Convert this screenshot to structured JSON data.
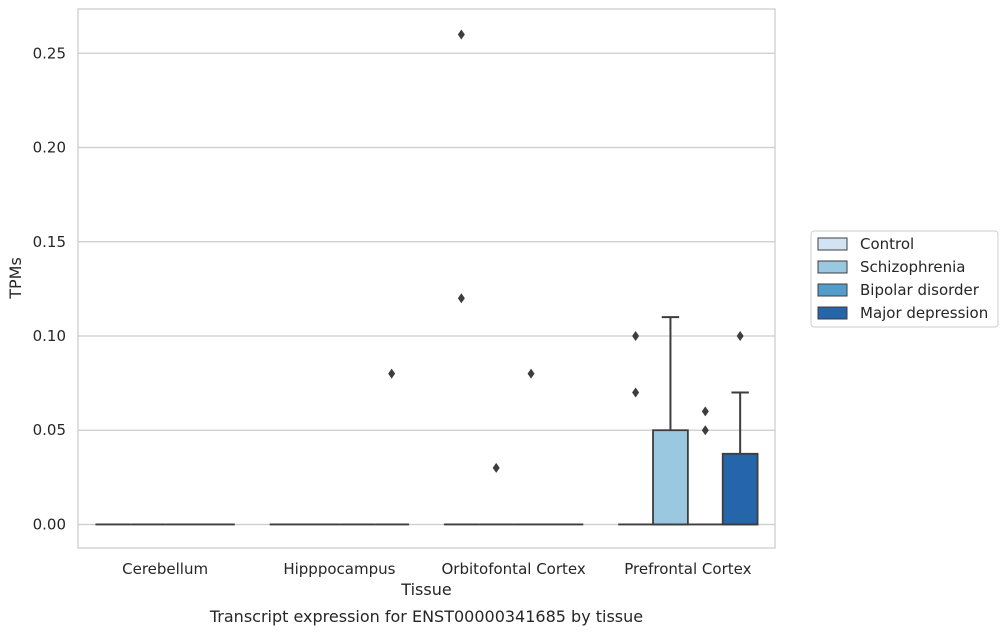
{
  "chart_data": {
    "type": "box",
    "title": "",
    "caption": "Transcript expression for ENST00000341685 by tissue",
    "xlabel": "Tissue",
    "ylabel": "TPMs",
    "ylim": [
      -0.0125,
      0.2735
    ],
    "yticks": [
      "0.00",
      "0.05",
      "0.10",
      "0.15",
      "0.20",
      "0.25"
    ],
    "grid": true,
    "legend_position": "right",
    "categories": [
      "Cerebellum",
      "Hipppocampus",
      "Orbitofontal Cortex",
      "Prefrontal Cortex"
    ],
    "series": [
      {
        "name": "Control",
        "color": "#d2e3f3"
      },
      {
        "name": "Schizophrenia",
        "color": "#9ac8e0"
      },
      {
        "name": "Bipolar disorder",
        "color": "#529dcc"
      },
      {
        "name": "Major depression",
        "color": "#2565a9"
      }
    ],
    "boxes": [
      {
        "category": 0,
        "series": 0,
        "q1": 0,
        "median": 0,
        "q3": 0,
        "whisker_low": 0,
        "whisker_high": 0,
        "outliers": []
      },
      {
        "category": 0,
        "series": 1,
        "q1": 0,
        "median": 0,
        "q3": 0,
        "whisker_low": 0,
        "whisker_high": 0,
        "outliers": []
      },
      {
        "category": 0,
        "series": 2,
        "q1": 0,
        "median": 0,
        "q3": 0,
        "whisker_low": 0,
        "whisker_high": 0,
        "outliers": []
      },
      {
        "category": 0,
        "series": 3,
        "q1": 0,
        "median": 0,
        "q3": 0,
        "whisker_low": 0,
        "whisker_high": 0,
        "outliers": []
      },
      {
        "category": 1,
        "series": 0,
        "q1": 0,
        "median": 0,
        "q3": 0,
        "whisker_low": 0,
        "whisker_high": 0,
        "outliers": []
      },
      {
        "category": 1,
        "series": 1,
        "q1": 0,
        "median": 0,
        "q3": 0,
        "whisker_low": 0,
        "whisker_high": 0,
        "outliers": []
      },
      {
        "category": 1,
        "series": 2,
        "q1": 0,
        "median": 0,
        "q3": 0,
        "whisker_low": 0,
        "whisker_high": 0,
        "outliers": []
      },
      {
        "category": 1,
        "series": 3,
        "q1": 0,
        "median": 0,
        "q3": 0,
        "whisker_low": 0,
        "whisker_high": 0,
        "outliers": [
          0.08
        ]
      },
      {
        "category": 2,
        "series": 0,
        "q1": 0,
        "median": 0,
        "q3": 0,
        "whisker_low": 0,
        "whisker_high": 0,
        "outliers": [
          0.26,
          0.12
        ]
      },
      {
        "category": 2,
        "series": 1,
        "q1": 0,
        "median": 0,
        "q3": 0,
        "whisker_low": 0,
        "whisker_high": 0,
        "outliers": [
          0.03
        ]
      },
      {
        "category": 2,
        "series": 2,
        "q1": 0,
        "median": 0,
        "q3": 0,
        "whisker_low": 0,
        "whisker_high": 0,
        "outliers": [
          0.08
        ]
      },
      {
        "category": 2,
        "series": 3,
        "q1": 0,
        "median": 0,
        "q3": 0,
        "whisker_low": 0,
        "whisker_high": 0,
        "outliers": []
      },
      {
        "category": 3,
        "series": 0,
        "q1": 0,
        "median": 0,
        "q3": 0,
        "whisker_low": 0,
        "whisker_high": 0,
        "outliers": [
          0.1,
          0.07
        ]
      },
      {
        "category": 3,
        "series": 1,
        "q1": 0,
        "median": 0,
        "q3": 0.05,
        "whisker_low": 0,
        "whisker_high": 0.11,
        "outliers": []
      },
      {
        "category": 3,
        "series": 2,
        "q1": 0,
        "median": 0,
        "q3": 0,
        "whisker_low": 0,
        "whisker_high": 0,
        "outliers": [
          0.06,
          0.05
        ]
      },
      {
        "category": 3,
        "series": 3,
        "q1": 0,
        "median": 0,
        "q3": 0.0375,
        "whisker_low": 0,
        "whisker_high": 0.07,
        "outliers": [
          0.1
        ]
      }
    ]
  }
}
